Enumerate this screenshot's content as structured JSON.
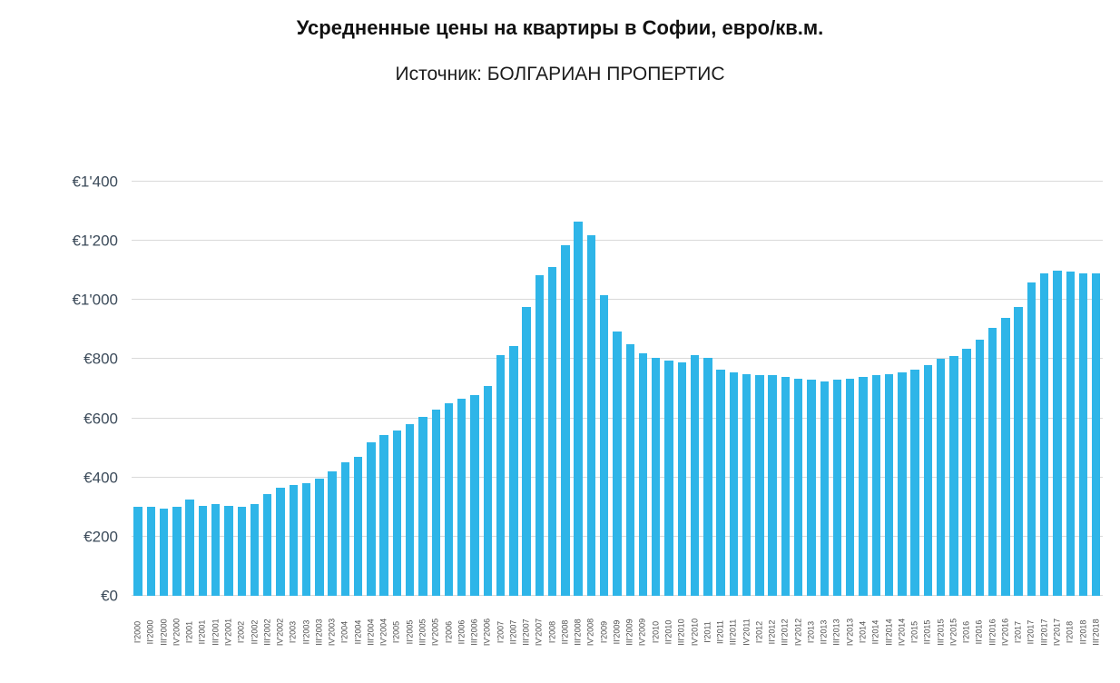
{
  "page": {
    "title": "Усредненные цены на квартиры в Софии, евро/кв.м.",
    "subtitle": "Источник: БОЛГАРИАН ПРОПЕРТИС"
  },
  "colors": {
    "bar": "#2eb5e8",
    "grid": "#d9d9d9",
    "axis_text": "#3c4b5a",
    "title_text": "#111111"
  },
  "chart_data": {
    "type": "bar",
    "title": "Усредненные цены на квартиры в Софии, евро/кв.м.",
    "subtitle": "Источник: БОЛГАРИАН ПРОПЕРТИС",
    "currency_prefix": "€",
    "xlabel": "",
    "ylabel": "",
    "ylim": [
      0,
      1400
    ],
    "grid": true,
    "legend": false,
    "y_tick_values": [
      0,
      200,
      400,
      600,
      800,
      1000,
      1200,
      1400
    ],
    "y_ticks": [
      "€0",
      "€200",
      "€400",
      "€600",
      "€800",
      "€1'000",
      "€1'200",
      "€1'400"
    ],
    "categories": [
      "I'2000",
      "II'2000",
      "III'2000",
      "IV'2000",
      "I'2001",
      "II'2001",
      "III'2001",
      "IV'2001",
      "I'2002",
      "II'2002",
      "III'2002",
      "IV'2002",
      "I'2003",
      "II'2003",
      "III'2003",
      "IV'2003",
      "I'2004",
      "II'2004",
      "III'2004",
      "IV'2004",
      "I'2005",
      "II'2005",
      "III'2005",
      "IV'2005",
      "I'2006",
      "II'2006",
      "III'2006",
      "IV'2006",
      "I'2007",
      "II'2007",
      "III'2007",
      "IV'2007",
      "I'2008",
      "II'2008",
      "III'2008",
      "IV'2008",
      "I'2009",
      "II'2009",
      "III'2009",
      "IV'2009",
      "I'2010",
      "II'2010",
      "III'2010",
      "IV'2010",
      "I'2011",
      "II'2011",
      "III'2011",
      "IV'2011",
      "I'2012",
      "II'2012",
      "III'2012",
      "IV'2012",
      "I'2013",
      "II'2013",
      "III'2013",
      "IV'2013",
      "I'2014",
      "II'2014",
      "III'2014",
      "IV'2014",
      "I'2015",
      "II'2015",
      "III'2015",
      "IV'2015",
      "I'2016",
      "II'2016",
      "III'2016",
      "IV'2016",
      "I'2017",
      "II'2017",
      "III'2017",
      "IV'2017",
      "I'2018",
      "II'2018",
      "III'2018"
    ],
    "values": [
      300,
      300,
      295,
      300,
      325,
      305,
      310,
      305,
      300,
      310,
      345,
      365,
      375,
      380,
      395,
      420,
      450,
      470,
      520,
      545,
      560,
      580,
      605,
      630,
      650,
      665,
      680,
      710,
      815,
      845,
      975,
      1085,
      1110,
      1185,
      1265,
      1220,
      1015,
      895,
      850,
      820,
      805,
      795,
      790,
      815,
      805,
      765,
      755,
      750,
      745,
      745,
      740,
      735,
      730,
      725,
      730,
      735,
      740,
      745,
      750,
      755,
      765,
      780,
      800,
      810,
      835,
      865,
      905,
      940,
      975,
      1060,
      1090,
      1100,
      1095,
      1090,
      1090
    ]
  }
}
